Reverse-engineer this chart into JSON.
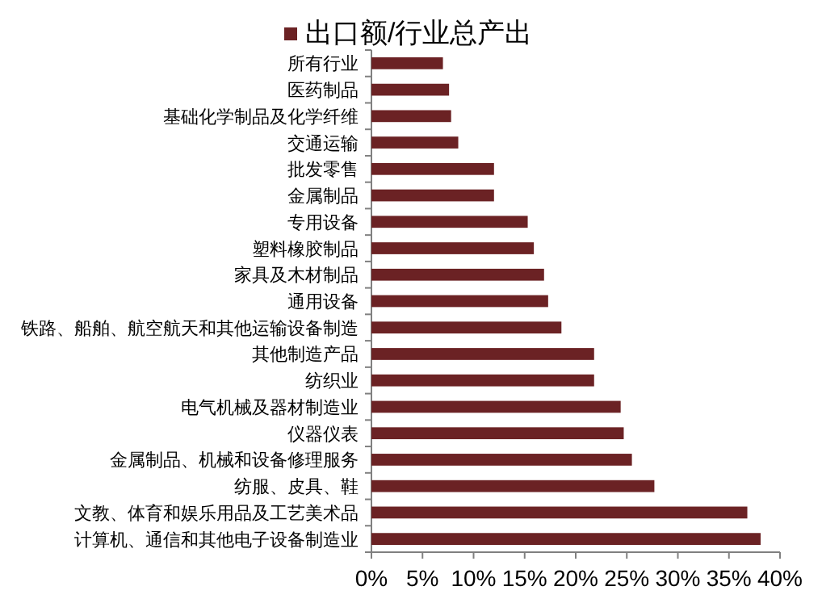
{
  "chart_data": {
    "type": "bar",
    "orientation": "horizontal",
    "categories": [
      "所有行业",
      "医药制品",
      "基础化学制品及化学纤维",
      "交通运输",
      "批发零售",
      "金属制品",
      "专用设备",
      "塑料橡胶制品",
      "家具及木材制品",
      "通用设备",
      "铁路、船舶、航空航天和其他运输设备制造",
      "其他制造产品",
      "纺织业",
      "电气机械及器材制造业",
      "仪器仪表",
      "金属制品、机械和设备修理服务",
      "纺服、皮具、鞋",
      "文教、体育和娱乐用品及工艺美术品",
      "计算机、通信和其他电子设备制造业"
    ],
    "series": [
      {
        "name": "出口额/行业总产出",
        "color": "#6b2224",
        "values": [
          7.0,
          7.6,
          7.8,
          8.5,
          12.0,
          12.0,
          15.3,
          15.9,
          16.9,
          17.3,
          18.6,
          21.8,
          21.8,
          24.4,
          24.7,
          25.5,
          27.7,
          36.8,
          38.1
        ]
      }
    ],
    "xlim": [
      0,
      40
    ],
    "xticks": [
      {
        "value": 0,
        "label": "0%"
      },
      {
        "value": 5,
        "label": "5%"
      },
      {
        "value": 10,
        "label": "10%"
      },
      {
        "value": 15,
        "label": "15%"
      },
      {
        "value": 20,
        "label": "20%"
      },
      {
        "value": 25,
        "label": "25%"
      },
      {
        "value": 30,
        "label": "30%"
      },
      {
        "value": 35,
        "label": "35%"
      },
      {
        "value": 40,
        "label": "40%"
      }
    ],
    "legend": "top",
    "grid": false
  }
}
